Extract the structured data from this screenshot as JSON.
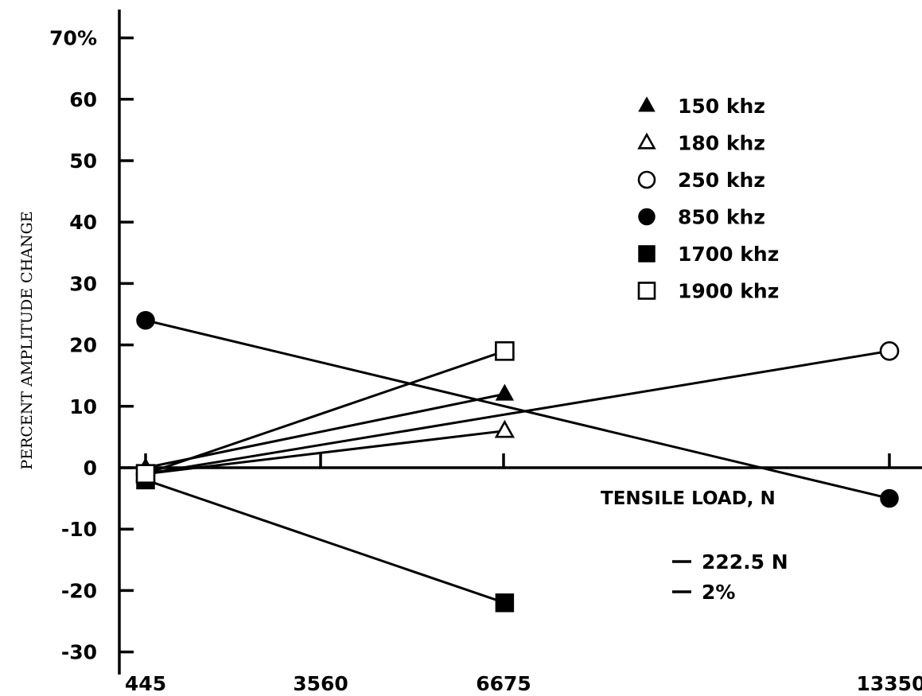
{
  "chart_data": {
    "type": "line",
    "title": "",
    "xlabel": "TENSILE LOAD, N",
    "ylabel": "PERCENT AMPLITUDE CHANGE",
    "x_ticks": [
      445,
      3560,
      6675,
      13350
    ],
    "y_ticks": [
      {
        "value": 70,
        "label": "70%"
      },
      {
        "value": 60,
        "label": "60"
      },
      {
        "value": 50,
        "label": "50"
      },
      {
        "value": 40,
        "label": "40"
      },
      {
        "value": 30,
        "label": "30"
      },
      {
        "value": 20,
        "label": "20"
      },
      {
        "value": 10,
        "label": "10"
      },
      {
        "value": 0,
        "label": "0"
      },
      {
        "value": -10,
        "label": "-10"
      },
      {
        "value": -20,
        "label": "-20"
      },
      {
        "value": -30,
        "label": "-30"
      }
    ],
    "xlim": [
      445,
      13350
    ],
    "ylim": [
      -30,
      70
    ],
    "grid": false,
    "legend_position": "top-right",
    "series": [
      {
        "name": "150 khz",
        "marker": "triangle-filled",
        "points": [
          [
            445,
            0
          ],
          [
            6675,
            12
          ]
        ]
      },
      {
        "name": "180 khz",
        "marker": "triangle-open",
        "points": [
          [
            445,
            -1
          ],
          [
            6675,
            6
          ]
        ]
      },
      {
        "name": "250 khz",
        "marker": "circle-open",
        "points": [
          [
            445,
            -1
          ],
          [
            13350,
            19
          ]
        ]
      },
      {
        "name": "850 khz",
        "marker": "circle-filled",
        "points": [
          [
            445,
            24
          ],
          [
            13350,
            -5
          ]
        ]
      },
      {
        "name": "1700 khz",
        "marker": "square-filled",
        "points": [
          [
            445,
            -2
          ],
          [
            6675,
            -22
          ]
        ]
      },
      {
        "name": "1900 khz",
        "marker": "square-open",
        "points": [
          [
            445,
            -1
          ],
          [
            6675,
            19
          ]
        ]
      }
    ],
    "scale_notes": [
      "222.5 N",
      "2%"
    ]
  }
}
